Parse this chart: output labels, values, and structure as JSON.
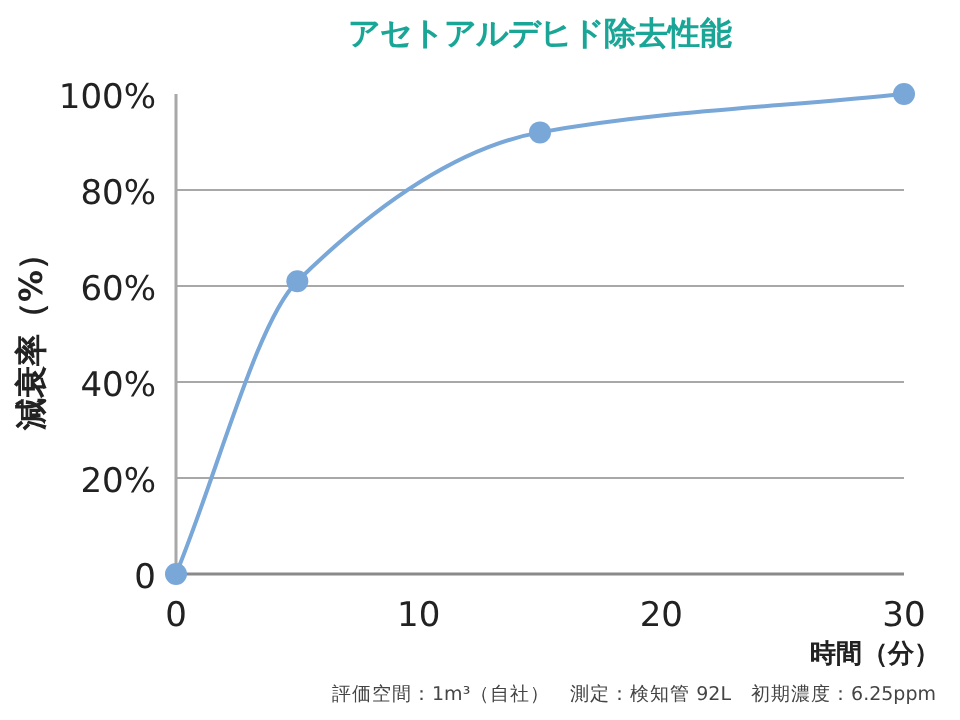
{
  "chart_data": {
    "type": "line",
    "title": "アセトアルデヒド除去性能",
    "xlabel": "時間（分）",
    "ylabel": "減衰率（%）",
    "x": [
      0,
      5,
      15,
      30
    ],
    "series": [
      {
        "color": "#79a7d8",
        "values": [
          0,
          61,
          92,
          100
        ]
      }
    ],
    "xlim": [
      0,
      30
    ],
    "xticks": [
      0,
      10,
      20,
      30
    ],
    "ylim": [
      0,
      100
    ],
    "yticks": [
      {
        "value": 0,
        "label": "0"
      },
      {
        "value": 20,
        "label": "20%"
      },
      {
        "value": 40,
        "label": "40%"
      },
      {
        "value": 60,
        "label": "60%"
      },
      {
        "value": 80,
        "label": "80%"
      },
      {
        "value": 100,
        "label": "100%"
      }
    ],
    "grid": "y",
    "marker": "circle",
    "line_style": "solid",
    "annotations": [
      "評価空間：1m³（自社）　測定：検知管 92L　初期濃度：6.25ppm"
    ]
  }
}
